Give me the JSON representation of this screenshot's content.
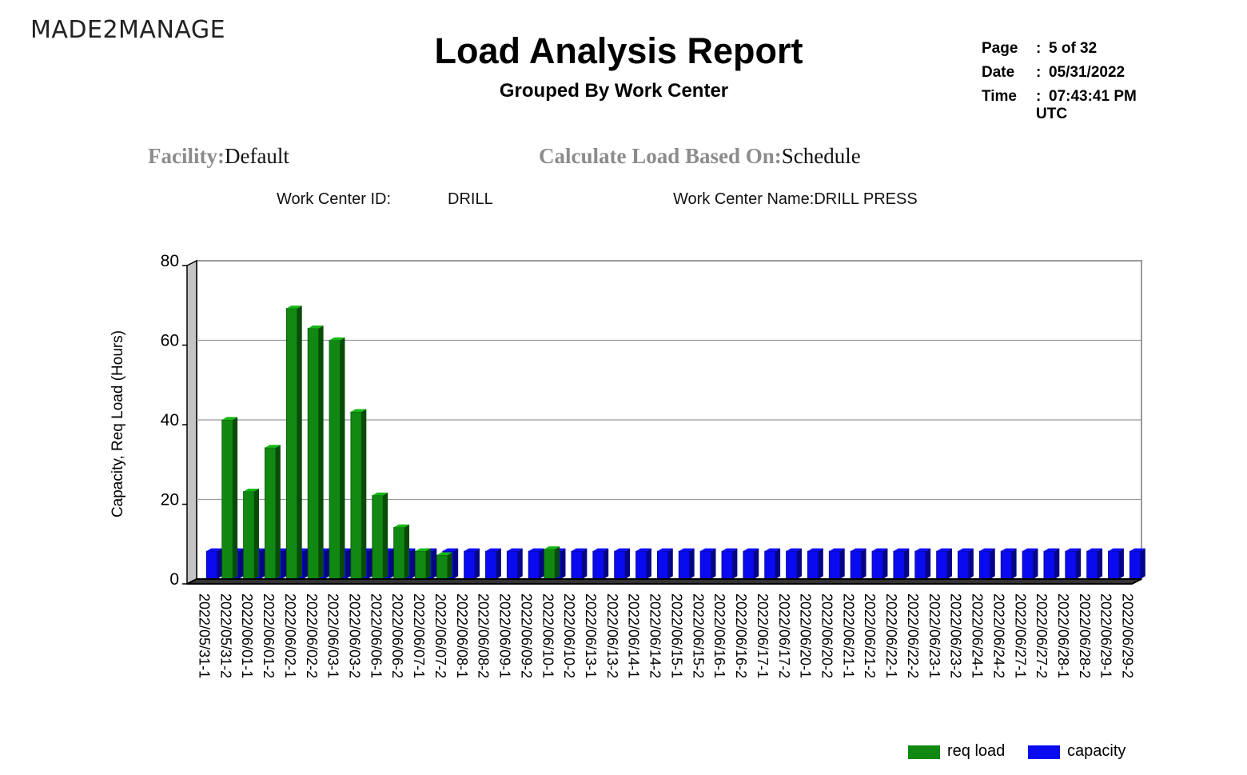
{
  "logo": "MADE2MANAGE",
  "report": {
    "title": "Load Analysis Report",
    "subtitle": "Grouped By Work Center"
  },
  "meta": {
    "page_label": "Page",
    "page_value": "5 of 32",
    "date_label": "Date",
    "date_value": "05/31/2022",
    "time_label": "Time",
    "time_value": "07:43:41 PM",
    "time_zone": "UTC",
    "separator": ":"
  },
  "params": {
    "facility_label": "Facility:",
    "facility_value": "Default",
    "calc_label": "Calculate Load Based On:",
    "calc_value": "Schedule"
  },
  "work_center": {
    "id_label": "Work Center ID:",
    "id_value": "DRILL",
    "name_label": "Work Center Name:",
    "name_value": "DRILL PRESS"
  },
  "colors": {
    "req_load": "#118811",
    "capacity": "#0a0af0",
    "grid": "#9a9a9a",
    "wall": "#c4c4c4"
  },
  "chart_data": {
    "type": "bar",
    "title": "",
    "xlabel": "",
    "ylabel": "Capacity, Req Load (Hours)",
    "ylim": [
      0,
      80
    ],
    "yticks": [
      0,
      20,
      40,
      60,
      80
    ],
    "grid": true,
    "legend_position": "bottom-right",
    "categories": [
      "2022/05/31-1",
      "2022/05/31-2",
      "2022/06/01-1",
      "2022/06/01-2",
      "2022/06/02-1",
      "2022/06/02-2",
      "2022/06/03-1",
      "2022/06/03-2",
      "2022/06/06-1",
      "2022/06/06-2",
      "2022/06/07-1",
      "2022/06/07-2",
      "2022/06/08-1",
      "2022/06/08-2",
      "2022/06/09-1",
      "2022/06/09-2",
      "2022/06/10-1",
      "2022/06/10-2",
      "2022/06/13-1",
      "2022/06/13-2",
      "2022/06/14-1",
      "2022/06/14-2",
      "2022/06/15-1",
      "2022/06/15-2",
      "2022/06/16-1",
      "2022/06/16-2",
      "2022/06/17-1",
      "2022/06/17-2",
      "2022/06/20-1",
      "2022/06/20-2",
      "2022/06/21-1",
      "2022/06/21-2",
      "2022/06/22-1",
      "2022/06/22-2",
      "2022/06/23-1",
      "2022/06/23-2",
      "2022/06/24-1",
      "2022/06/24-2",
      "2022/06/27-1",
      "2022/06/27-2",
      "2022/06/28-1",
      "2022/06/28-2",
      "2022/06/29-1",
      "2022/06/29-2"
    ],
    "series": [
      {
        "name": "req load",
        "values": [
          0,
          40,
          22,
          33,
          68,
          63,
          60,
          42,
          21,
          13,
          7,
          6,
          0,
          0,
          0,
          0,
          7.5,
          0,
          0,
          0,
          0,
          0,
          0,
          0,
          0,
          0,
          0,
          0,
          0,
          0,
          0,
          0,
          0,
          0,
          0,
          0,
          0,
          0,
          0,
          0,
          0,
          0,
          0,
          0
        ]
      },
      {
        "name": "capacity",
        "values": [
          7,
          7,
          7,
          7,
          7,
          7,
          7,
          7,
          7,
          7,
          7,
          7,
          7,
          7,
          7,
          7,
          7,
          7,
          7,
          7,
          7,
          7,
          7,
          7,
          7,
          7,
          7,
          7,
          7,
          7,
          7,
          7,
          7,
          7,
          7,
          7,
          7,
          7,
          7,
          7,
          7,
          7,
          7,
          7
        ]
      }
    ]
  }
}
